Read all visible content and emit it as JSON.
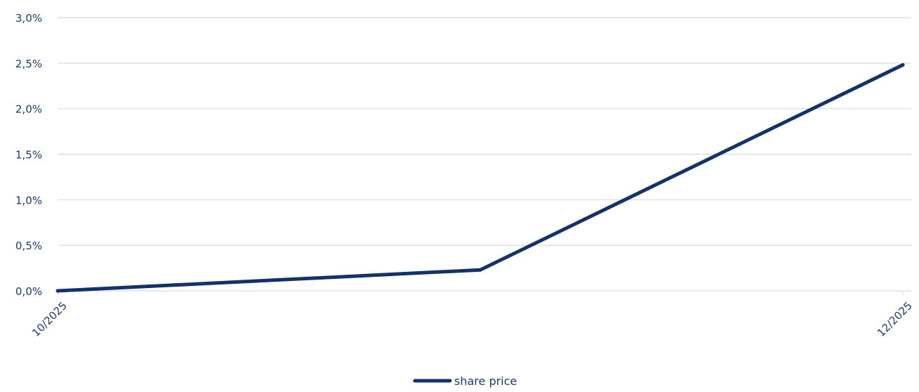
{
  "chart_data": {
    "type": "line",
    "title": "",
    "xlabel": "",
    "ylabel": "",
    "x_ticks": [
      "10/2025",
      "12/2025"
    ],
    "y_ticks": [
      "0,0%",
      "0,5%",
      "1,0%",
      "1,5%",
      "2,0%",
      "2,5%",
      "3,0%"
    ],
    "y_tick_values": [
      0,
      0.5,
      1.0,
      1.5,
      2.0,
      2.5,
      3.0
    ],
    "ylim": [
      0,
      3.0
    ],
    "x_domain": [
      "10/2025",
      "12/2025"
    ],
    "grid": true,
    "legend_position": "bottom-center",
    "series": [
      {
        "name": "share price",
        "color": "#12326b",
        "x": [
          "10/2025",
          "11/2025",
          "12/2025"
        ],
        "values": [
          0.0,
          0.23,
          2.48
        ]
      }
    ]
  },
  "colors": {
    "axis_text": "#1c3a74",
    "grid": "#d3d9e3",
    "line": "#12326b"
  }
}
